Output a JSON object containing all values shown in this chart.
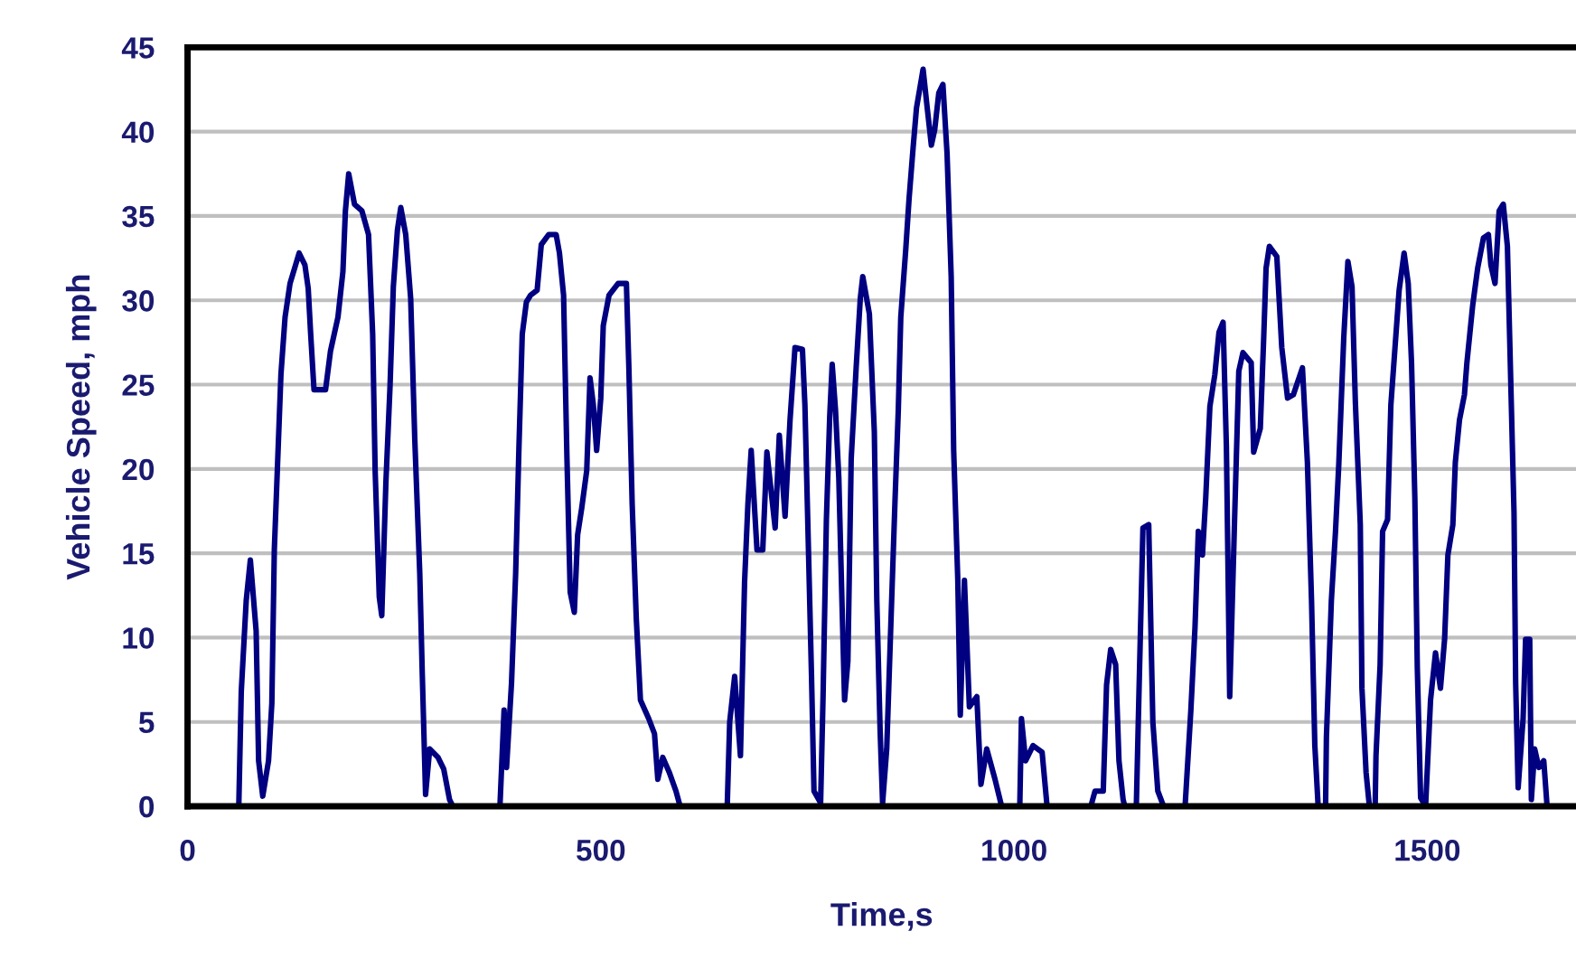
{
  "chart_data": {
    "type": "line",
    "xlabel": "Time,s",
    "ylabel": "Vehicle Speed, mph",
    "xlim": [
      0,
      1680
    ],
    "xticks": [
      0,
      500,
      1000,
      1500
    ],
    "ylim": [
      0,
      45
    ],
    "yticks": [
      0,
      5,
      10,
      15,
      20,
      25,
      30,
      35,
      40,
      45
    ],
    "grid": "y",
    "marker": "none",
    "line_style": "solid",
    "series": [
      {
        "color": "#000080",
        "x": [
          62,
          65,
          71,
          76,
          83,
          86,
          91,
          98,
          102,
          105,
          109,
          113,
          118,
          124,
          135,
          142,
          146,
          149,
          153,
          167,
          173,
          182,
          188,
          191,
          195,
          202,
          211,
          219,
          224,
          227,
          232,
          235,
          240,
          245,
          249,
          254,
          258,
          264,
          270,
          275,
          281,
          284,
          288,
          293,
          303,
          310,
          317,
          321,
          378,
          383,
          386,
          392,
          397,
          401,
          405,
          410,
          415,
          423,
          428,
          437,
          446,
          450,
          455,
          459,
          463,
          468,
          472,
          477,
          483,
          487,
          491,
          495,
          500,
          503,
          510,
          521,
          531,
          534,
          538,
          543,
          548,
          558,
          565,
          569,
          575,
          583,
          591,
          596,
          653,
          656,
          662,
          669,
          674,
          678,
          682,
          689,
          696,
          701,
          711,
          716,
          723,
          729,
          735,
          744,
          747,
          751,
          755,
          758,
          766,
          769,
          773,
          777,
          780,
          784,
          788,
          792,
          795,
          799,
          803,
          809,
          814,
          817,
          825,
          831,
          834,
          838,
          841,
          846,
          851,
          856,
          860,
          863,
          869,
          873,
          878,
          882,
          890,
          895,
          900,
          904,
          909,
          914,
          919,
          924,
          927,
          932,
          935,
          940,
          946,
          955,
          960,
          967,
          977,
          985,
          1007,
          1009,
          1014,
          1023,
          1034,
          1040,
          1093,
          1098,
          1108,
          1112,
          1117,
          1123,
          1127,
          1132,
          1134,
          1148,
          1151,
          1156,
          1163,
          1168,
          1174,
          1181,
          1207,
          1214,
          1219,
          1223,
          1228,
          1232,
          1237,
          1243,
          1248,
          1253,
          1257,
          1261,
          1267,
          1272,
          1277,
          1287,
          1290,
          1298,
          1302,
          1305,
          1309,
          1318,
          1324,
          1331,
          1338,
          1349,
          1355,
          1360,
          1364,
          1368,
          1377,
          1378,
          1384,
          1389,
          1393,
          1399,
          1404,
          1409,
          1413,
          1419,
          1421,
          1426,
          1430,
          1437,
          1438,
          1443,
          1446,
          1452,
          1456,
          1461,
          1466,
          1472,
          1477,
          1481,
          1485,
          1488,
          1492,
          1498,
          1504,
          1510,
          1516,
          1521,
          1525,
          1531,
          1534,
          1539,
          1545,
          1548,
          1555,
          1561,
          1568,
          1574,
          1577,
          1582,
          1587,
          1592,
          1597,
          1601,
          1605,
          1607,
          1610,
          1616,
          1619,
          1624,
          1626,
          1630,
          1635,
          1641,
          1645
        ],
        "values": [
          0,
          6.8,
          12.2,
          14.6,
          10.4,
          2.7,
          0.6,
          2.7,
          6.1,
          15.2,
          20.4,
          25.6,
          29,
          31,
          32.8,
          32.1,
          30.7,
          28,
          24.7,
          24.7,
          27,
          29,
          31.7,
          35.3,
          37.5,
          35.7,
          35.3,
          33.9,
          28,
          19.9,
          12.4,
          11.3,
          19.2,
          24.9,
          30.8,
          34.2,
          35.5,
          33.9,
          30.1,
          21.7,
          13.8,
          7.9,
          0.7,
          3.4,
          2.9,
          2.2,
          0.4,
          0,
          0,
          5.7,
          2.3,
          7.3,
          13.8,
          21.3,
          28,
          29.9,
          30.3,
          30.6,
          33.3,
          33.9,
          33.9,
          32.8,
          30.3,
          20.8,
          12.7,
          11.5,
          16.1,
          17.7,
          19.9,
          25.4,
          23.8,
          21.1,
          24.2,
          28.5,
          30.3,
          31,
          31,
          26,
          17.9,
          11.1,
          6.3,
          5.2,
          4.3,
          1.6,
          2.9,
          2,
          0.9,
          0,
          0,
          5,
          7.7,
          3,
          13.3,
          17.9,
          21.1,
          15.2,
          15.2,
          21,
          16.5,
          22,
          17.2,
          22.9,
          27.2,
          27.1,
          23.8,
          15.8,
          7.7,
          0.9,
          0.2,
          6.6,
          17,
          23.1,
          26.2,
          23.5,
          19.5,
          11.8,
          6.3,
          8.6,
          20.6,
          26,
          30.1,
          31.4,
          29.2,
          22.2,
          12.2,
          4.5,
          0.2,
          3.4,
          10.8,
          18.1,
          23.5,
          29,
          33,
          36,
          39.1,
          41.4,
          43.7,
          41.4,
          39.2,
          40.1,
          42.3,
          42.8,
          38.7,
          31.4,
          21.1,
          13.4,
          5.4,
          13.4,
          5.9,
          6.5,
          1.3,
          3.4,
          1.6,
          0,
          0,
          5.2,
          2.7,
          3.6,
          3.2,
          0,
          0,
          0.9,
          0.9,
          7.2,
          9.3,
          8.4,
          2.7,
          0.4,
          0,
          0,
          6.3,
          16.5,
          16.7,
          5,
          0.9,
          0,
          0,
          5.7,
          10.6,
          16.3,
          14.9,
          18.3,
          23.7,
          25.6,
          28.1,
          28.7,
          21.3,
          6.5,
          17.2,
          25.8,
          26.9,
          26.3,
          21,
          22.4,
          27.6,
          31.9,
          33.2,
          32.6,
          27.2,
          24.2,
          24.4,
          26,
          20.4,
          12.2,
          3.6,
          0,
          0,
          4.1,
          12.2,
          16.3,
          20.3,
          27.8,
          32.3,
          30.8,
          24,
          16.7,
          7,
          2,
          0,
          0,
          3,
          8.4,
          16.3,
          17,
          23.8,
          27.2,
          30.6,
          32.8,
          31,
          26.3,
          18.3,
          8.2,
          0.5,
          0,
          6.3,
          9.1,
          7,
          9.9,
          14.9,
          16.7,
          20.4,
          22.9,
          24.4,
          26.3,
          29.7,
          31.9,
          33.7,
          33.9,
          32.1,
          31,
          35.3,
          35.7,
          33.2,
          25.3,
          17.4,
          7.3,
          1.1,
          5.2,
          9.9,
          9.9,
          0.4,
          3.4,
          2.3,
          2.7,
          0
        ]
      }
    ]
  }
}
